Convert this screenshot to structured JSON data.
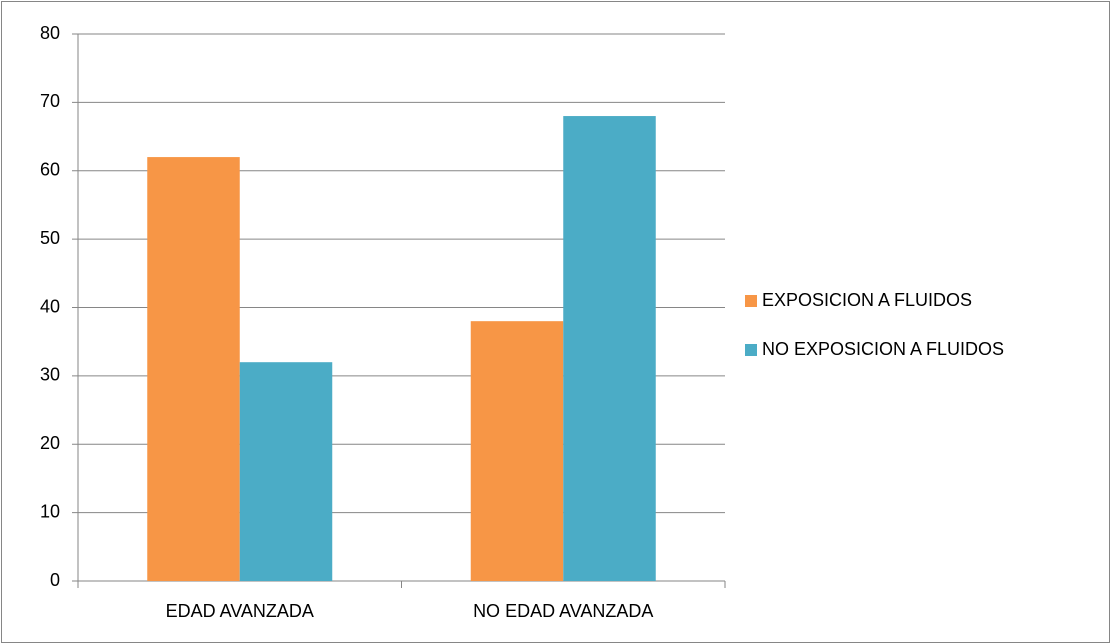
{
  "chart_data": {
    "type": "bar",
    "categories": [
      "EDAD AVANZADA",
      "NO EDAD AVANZADA"
    ],
    "series": [
      {
        "name": "EXPOSICION A FLUIDOS",
        "color": "#f79646",
        "values": [
          62,
          38
        ]
      },
      {
        "name": "NO EXPOSICION A FLUIDOS",
        "color": "#4bacc6",
        "values": [
          32,
          68
        ]
      }
    ],
    "ylim": [
      0,
      80
    ],
    "yticks": [
      0,
      10,
      20,
      30,
      40,
      50,
      60,
      70,
      80
    ],
    "grid": true,
    "legend": "right"
  }
}
